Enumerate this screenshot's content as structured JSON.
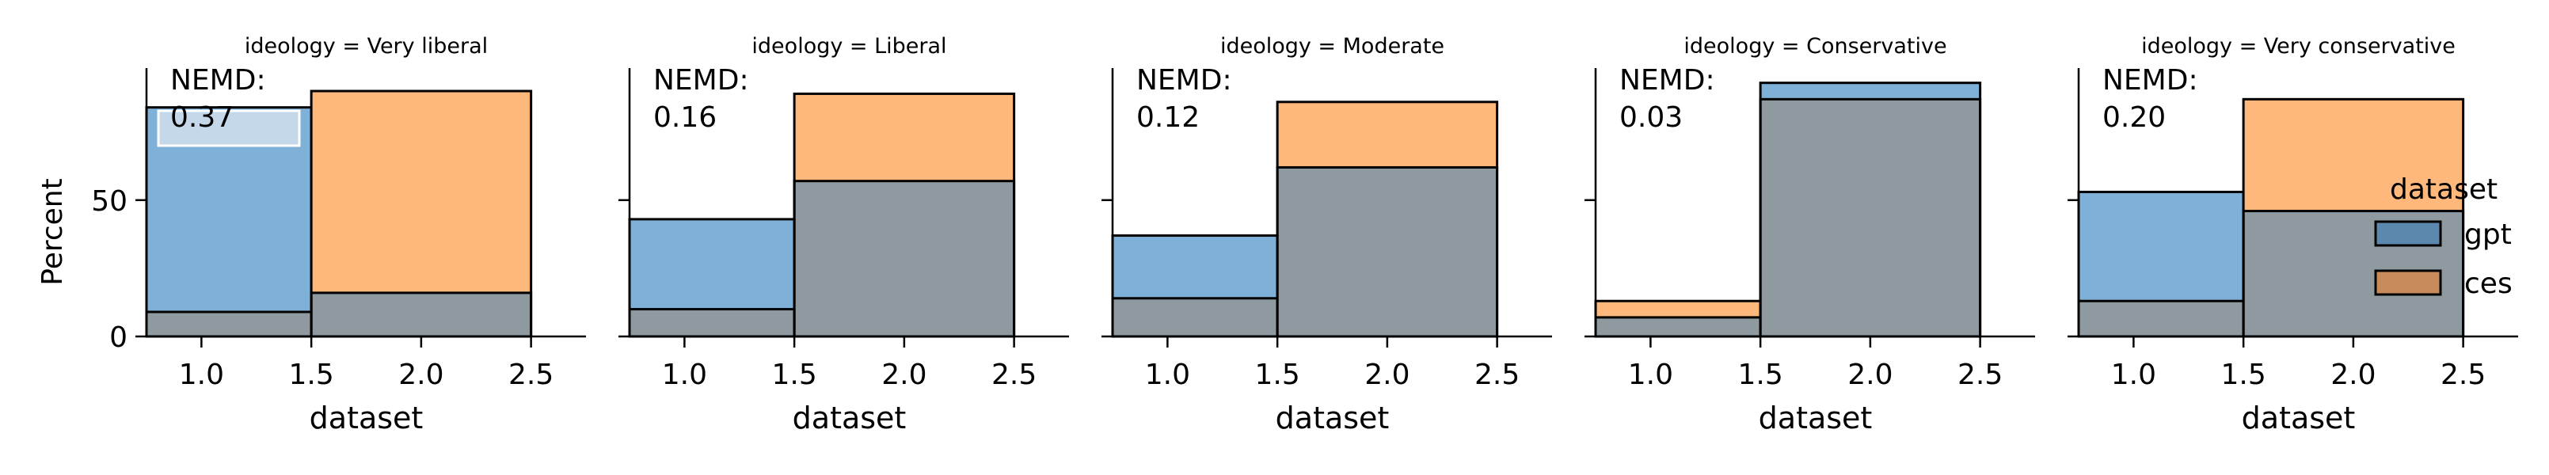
{
  "figure": {
    "ylabel": "Percent",
    "legend": {
      "title": "dataset",
      "placement": "right",
      "entries": [
        {
          "label": "gpt",
          "color": "#5c88ad"
        },
        {
          "label": "ces",
          "color": "#c88b5b"
        }
      ]
    }
  },
  "colors": {
    "gpt_fill": "#7fb1d8",
    "ces_fill": "#ffb87c",
    "overlap_fill": "#8f9aa0",
    "edge": "#000000",
    "annotation_box": "#dbe6ef"
  },
  "chart_data": [
    {
      "type": "bar",
      "title": "ideology = Very liberal",
      "xlabel": "dataset",
      "ylabel": "Percent",
      "xlim": [
        0.75,
        2.75
      ],
      "ylim": [
        0,
        90
      ],
      "xticks": [
        "1.0",
        "1.5",
        "2.0",
        "2.5"
      ],
      "yticks": [
        "0",
        "50"
      ],
      "annotation": {
        "label": "NEMD:",
        "value": "0.37",
        "boxed": true
      },
      "bins": [
        [
          0.75,
          1.5
        ],
        [
          1.5,
          2.5
        ]
      ],
      "series": [
        {
          "name": "gpt",
          "values": [
            84,
            16
          ]
        },
        {
          "name": "ces",
          "values": [
            9,
            90
          ]
        }
      ]
    },
    {
      "type": "bar",
      "title": "ideology = Liberal",
      "xlabel": "dataset",
      "ylabel": "",
      "xlim": [
        0.75,
        2.75
      ],
      "ylim": [
        0,
        90
      ],
      "xticks": [
        "1.0",
        "1.5",
        "2.0",
        "2.5"
      ],
      "yticks": [],
      "annotation": {
        "label": "NEMD:",
        "value": "0.16",
        "boxed": false
      },
      "bins": [
        [
          0.75,
          1.5
        ],
        [
          1.5,
          2.5
        ]
      ],
      "series": [
        {
          "name": "gpt",
          "values": [
            43,
            57
          ]
        },
        {
          "name": "ces",
          "values": [
            10,
            89
          ]
        }
      ]
    },
    {
      "type": "bar",
      "title": "ideology = Moderate",
      "xlabel": "dataset",
      "ylabel": "",
      "xlim": [
        0.75,
        2.75
      ],
      "ylim": [
        0,
        90
      ],
      "xticks": [
        "1.0",
        "1.5",
        "2.0",
        "2.5"
      ],
      "yticks": [],
      "annotation": {
        "label": "NEMD:",
        "value": "0.12",
        "boxed": false
      },
      "bins": [
        [
          0.75,
          1.5
        ],
        [
          1.5,
          2.5
        ]
      ],
      "series": [
        {
          "name": "gpt",
          "values": [
            37,
            62
          ]
        },
        {
          "name": "ces",
          "values": [
            14,
            86
          ]
        }
      ]
    },
    {
      "type": "bar",
      "title": "ideology = Conservative",
      "xlabel": "dataset",
      "ylabel": "",
      "xlim": [
        0.75,
        2.75
      ],
      "ylim": [
        0,
        90
      ],
      "xticks": [
        "1.0",
        "1.5",
        "2.0",
        "2.5"
      ],
      "yticks": [],
      "annotation": {
        "label": "NEMD:",
        "value": "0.03",
        "boxed": false
      },
      "bins": [
        [
          0.75,
          1.5
        ],
        [
          1.5,
          2.5
        ]
      ],
      "series": [
        {
          "name": "gpt",
          "values": [
            7,
            93
          ]
        },
        {
          "name": "ces",
          "values": [
            13,
            87
          ]
        }
      ]
    },
    {
      "type": "bar",
      "title": "ideology = Very conservative",
      "xlabel": "dataset",
      "ylabel": "",
      "xlim": [
        0.75,
        2.75
      ],
      "ylim": [
        0,
        90
      ],
      "xticks": [
        "1.0",
        "1.5",
        "2.0",
        "2.5"
      ],
      "yticks": [],
      "annotation": {
        "label": "NEMD:",
        "value": "0.20",
        "boxed": false
      },
      "bins": [
        [
          0.75,
          1.5
        ],
        [
          1.5,
          2.5
        ]
      ],
      "series": [
        {
          "name": "gpt",
          "values": [
            53,
            46
          ]
        },
        {
          "name": "ces",
          "values": [
            13,
            87
          ]
        }
      ]
    }
  ]
}
